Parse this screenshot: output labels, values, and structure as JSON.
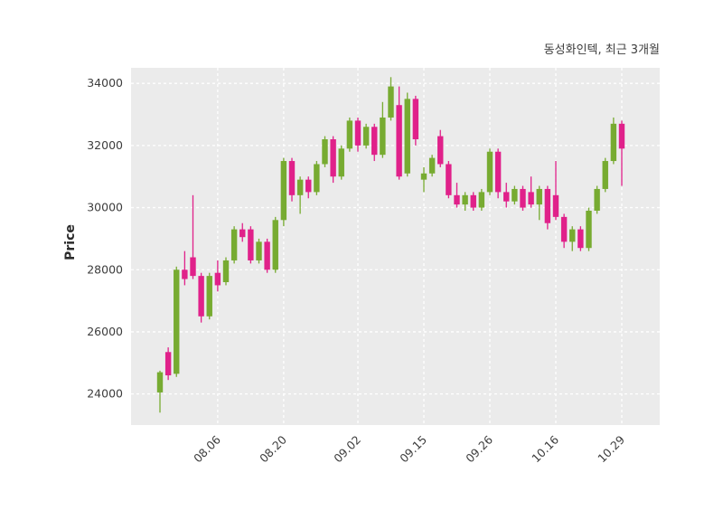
{
  "chart_data": {
    "type": "candlestick",
    "title": "동성화인텍, 최근 3개월",
    "ylabel": "Price",
    "xlabel": "",
    "axis": {
      "ylim": [
        23000,
        34500
      ],
      "yticks": [
        24000,
        26000,
        28000,
        30000,
        32000,
        34000
      ],
      "xtick_indices": [
        7,
        15,
        24,
        32,
        40,
        48,
        56
      ],
      "xtick_labels": [
        "08.06",
        "08.20",
        "09.02",
        "09.15",
        "09.26",
        "10.16",
        "10.29"
      ],
      "grid": true,
      "grid_style": "dashed"
    },
    "colors": {
      "up": "#77ab31",
      "down": "#e0218a",
      "panel_bg": "#ebebeb",
      "grid": "#ffffff",
      "tick_text": "#3d3d3d"
    },
    "candle_columns": [
      "open",
      "high",
      "low",
      "close"
    ],
    "candles": [
      [
        24050,
        24750,
        23400,
        24700
      ],
      [
        25350,
        25500,
        24450,
        24600
      ],
      [
        24650,
        28100,
        24550,
        28000
      ],
      [
        28000,
        28600,
        27500,
        27700
      ],
      [
        28400,
        30400,
        27700,
        27800
      ],
      [
        27800,
        27900,
        26300,
        26500
      ],
      [
        26500,
        27900,
        26400,
        27800
      ],
      [
        27900,
        28300,
        27300,
        27500
      ],
      [
        27600,
        28400,
        27500,
        28300
      ],
      [
        28300,
        29400,
        28200,
        29300
      ],
      [
        29300,
        29500,
        28900,
        29050
      ],
      [
        29300,
        29400,
        28200,
        28300
      ],
      [
        28300,
        29000,
        28200,
        28900
      ],
      [
        28900,
        29000,
        27900,
        28000
      ],
      [
        28000,
        29700,
        27900,
        29600
      ],
      [
        29600,
        31600,
        29400,
        31500
      ],
      [
        31500,
        31600,
        30200,
        30400
      ],
      [
        30400,
        31000,
        29800,
        30900
      ],
      [
        30900,
        31000,
        30300,
        30500
      ],
      [
        30500,
        31500,
        30400,
        31400
      ],
      [
        31400,
        32300,
        31300,
        32200
      ],
      [
        32200,
        32300,
        30800,
        31000
      ],
      [
        31000,
        32000,
        30900,
        31900
      ],
      [
        31900,
        32900,
        31800,
        32800
      ],
      [
        32800,
        32900,
        31800,
        32000
      ],
      [
        32000,
        32700,
        31900,
        32600
      ],
      [
        32600,
        32700,
        31500,
        31700
      ],
      [
        31700,
        33400,
        31600,
        32900
      ],
      [
        32900,
        34200,
        32800,
        33900
      ],
      [
        33300,
        33900,
        30900,
        31000
      ],
      [
        31100,
        33700,
        31000,
        33500
      ],
      [
        33500,
        33600,
        32000,
        32200
      ],
      [
        30900,
        31300,
        30500,
        31100
      ],
      [
        31100,
        31700,
        31000,
        31600
      ],
      [
        32300,
        32500,
        31300,
        31400
      ],
      [
        31400,
        31500,
        30300,
        30400
      ],
      [
        30400,
        30800,
        30000,
        30100
      ],
      [
        30100,
        30500,
        29900,
        30400
      ],
      [
        30400,
        30500,
        29900,
        30000
      ],
      [
        30000,
        30600,
        29900,
        30500
      ],
      [
        30500,
        31900,
        30400,
        31800
      ],
      [
        31800,
        31900,
        30300,
        30500
      ],
      [
        30500,
        30800,
        30000,
        30200
      ],
      [
        30200,
        30700,
        30100,
        30600
      ],
      [
        30600,
        30700,
        29900,
        30000
      ],
      [
        30500,
        31000,
        30000,
        30100
      ],
      [
        30100,
        30700,
        29600,
        30600
      ],
      [
        30600,
        30700,
        29300,
        29500
      ],
      [
        30400,
        31500,
        29600,
        29700
      ],
      [
        29700,
        29800,
        28700,
        28900
      ],
      [
        28900,
        29400,
        28600,
        29300
      ],
      [
        29300,
        29400,
        28600,
        28700
      ],
      [
        28700,
        30000,
        28600,
        29900
      ],
      [
        29900,
        30700,
        29800,
        30600
      ],
      [
        30600,
        31600,
        30500,
        31500
      ],
      [
        31500,
        32900,
        31400,
        32700
      ],
      [
        32700,
        32800,
        30700,
        31900
      ]
    ]
  }
}
